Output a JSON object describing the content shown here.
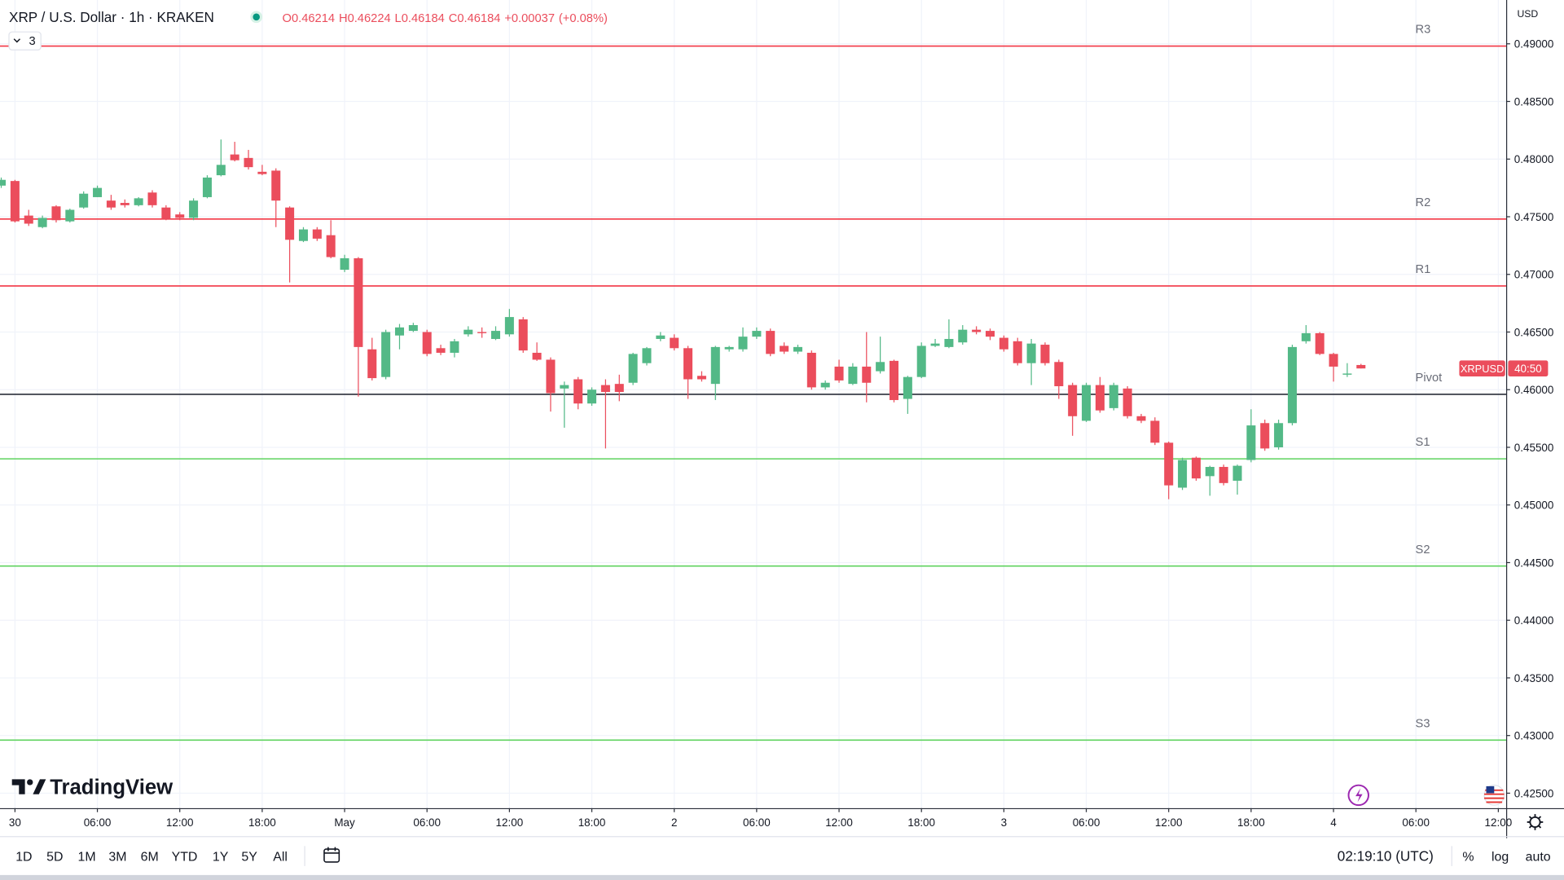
{
  "header": {
    "symbol": "XRP / U.S. Dollar · 1h · KRAKEN",
    "indicator_count": "3",
    "ohlc_labels": [
      "O",
      "H",
      "L",
      "C"
    ],
    "change": "+0.00037",
    "change_percent": "(+0.08%)"
  },
  "chart_data": {
    "type": "candlestick",
    "x": [
      -1,
      0,
      1,
      2,
      3,
      4,
      5,
      6,
      7,
      8,
      9,
      10,
      11,
      12,
      13,
      14,
      15,
      16,
      17,
      18,
      19,
      20,
      21,
      22,
      23,
      24,
      25,
      26,
      27,
      28,
      29,
      30,
      31,
      32,
      33,
      34,
      35,
      36,
      37,
      38,
      39,
      40,
      41,
      42,
      43,
      44,
      45,
      46,
      47,
      48,
      49,
      50,
      51,
      52,
      53,
      54,
      55,
      56,
      57,
      58,
      59,
      60,
      61,
      62,
      63,
      64,
      65,
      66,
      67,
      68,
      69,
      70,
      71,
      72,
      73,
      74,
      75,
      76,
      77,
      78,
      79,
      80,
      81,
      82,
      83,
      84,
      85,
      86,
      87,
      88,
      89,
      90,
      91,
      92,
      93,
      94,
      95,
      96,
      97,
      98
    ],
    "open": [
      0.4777,
      0.4781,
      0.4751,
      0.4741,
      0.4759,
      0.4746,
      0.4758,
      0.4767,
      0.4764,
      0.4762,
      0.476,
      0.4771,
      0.4758,
      0.4752,
      0.4749,
      0.4767,
      0.4786,
      0.4804,
      0.4801,
      0.4789,
      0.479,
      0.4758,
      0.4729,
      0.4739,
      0.4734,
      0.4704,
      0.4714,
      0.4635,
      0.4611,
      0.4647,
      0.4651,
      0.465,
      0.4636,
      0.4632,
      0.4648,
      0.465,
      0.4644,
      0.4648,
      0.4661,
      0.4632,
      0.4626,
      0.4601,
      0.4609,
      0.4588,
      0.4604,
      0.4605,
      0.4606,
      0.4623,
      0.4644,
      0.4645,
      0.4636,
      0.4612,
      0.4605,
      0.4635,
      0.4635,
      0.4646,
      0.4651,
      0.4638,
      0.4633,
      0.4632,
      0.4602,
      0.462,
      0.4605,
      0.462,
      0.4616,
      0.4625,
      0.4592,
      0.4611,
      0.4638,
      0.4637,
      0.4641,
      0.4652,
      0.4651,
      0.4645,
      0.4642,
      0.4623,
      0.4639,
      0.4624,
      0.4604,
      0.4573,
      0.4604,
      0.4584,
      0.4601,
      0.4577,
      0.4573,
      0.4554,
      0.4515,
      0.4541,
      0.4525,
      0.4533,
      0.4521,
      0.4539,
      0.4571,
      0.455,
      0.4571,
      0.4642,
      0.4649,
      0.4631,
      0.4613,
      0.46214
    ],
    "high": [
      0.4784,
      0.4782,
      0.4756,
      0.4751,
      0.476,
      0.4757,
      0.4772,
      0.4777,
      0.4769,
      0.4765,
      0.4767,
      0.4773,
      0.476,
      0.4754,
      0.4766,
      0.4786,
      0.4817,
      0.4815,
      0.4808,
      0.4795,
      0.4792,
      0.4759,
      0.4741,
      0.4741,
      0.4747,
      0.4717,
      0.4715,
      0.4645,
      0.4652,
      0.4657,
      0.4658,
      0.4652,
      0.4639,
      0.4644,
      0.4655,
      0.4654,
      0.4655,
      0.467,
      0.4663,
      0.4641,
      0.4628,
      0.4607,
      0.4611,
      0.4602,
      0.4609,
      0.4613,
      0.4632,
      0.4637,
      0.465,
      0.4648,
      0.4638,
      0.4616,
      0.4638,
      0.4638,
      0.4654,
      0.4654,
      0.4653,
      0.4641,
      0.4639,
      0.4634,
      0.4608,
      0.4626,
      0.4623,
      0.465,
      0.4646,
      0.4626,
      0.4612,
      0.4641,
      0.4644,
      0.4661,
      0.4656,
      0.4655,
      0.4653,
      0.4647,
      0.4645,
      0.4644,
      0.4641,
      0.4626,
      0.4606,
      0.4606,
      0.4611,
      0.4606,
      0.4603,
      0.4579,
      0.4576,
      0.4555,
      0.4541,
      0.4542,
      0.4534,
      0.4535,
      0.4535,
      0.4583,
      0.4574,
      0.4574,
      0.4639,
      0.4656,
      0.465,
      0.4632,
      0.4623,
      0.46224
    ],
    "low": [
      0.4775,
      0.4745,
      0.4742,
      0.474,
      0.4745,
      0.4745,
      0.4757,
      0.4767,
      0.4756,
      0.4758,
      0.4759,
      0.4758,
      0.4747,
      0.4747,
      0.4747,
      0.4766,
      0.4785,
      0.4798,
      0.4791,
      0.4786,
      0.4741,
      0.4693,
      0.4728,
      0.4729,
      0.4714,
      0.4702,
      0.4594,
      0.4608,
      0.4609,
      0.4635,
      0.465,
      0.4629,
      0.463,
      0.4628,
      0.4646,
      0.4645,
      0.4643,
      0.4646,
      0.4632,
      0.4625,
      0.4581,
      0.4567,
      0.4583,
      0.4586,
      0.4549,
      0.459,
      0.4604,
      0.4621,
      0.4642,
      0.4634,
      0.4592,
      0.4607,
      0.4591,
      0.4633,
      0.4633,
      0.4644,
      0.4629,
      0.4631,
      0.4631,
      0.46,
      0.46,
      0.4606,
      0.4604,
      0.4589,
      0.4614,
      0.4589,
      0.4579,
      0.461,
      0.4637,
      0.4636,
      0.4639,
      0.4648,
      0.4643,
      0.4633,
      0.4621,
      0.4604,
      0.4621,
      0.4592,
      0.456,
      0.4572,
      0.458,
      0.4582,
      0.4575,
      0.4571,
      0.4552,
      0.4505,
      0.4513,
      0.4521,
      0.4508,
      0.4517,
      0.4509,
      0.4537,
      0.4547,
      0.4548,
      0.4569,
      0.464,
      0.463,
      0.4607,
      0.4611,
      0.46184
    ],
    "close": [
      0.4782,
      0.4746,
      0.4744,
      0.4749,
      0.4747,
      0.4756,
      0.477,
      0.4775,
      0.4758,
      0.476,
      0.4766,
      0.476,
      0.4748,
      0.4749,
      0.4764,
      0.4784,
      0.4795,
      0.4799,
      0.4793,
      0.4787,
      0.4764,
      0.473,
      0.4739,
      0.4731,
      0.4715,
      0.4714,
      0.4637,
      0.461,
      0.465,
      0.4654,
      0.4656,
      0.4631,
      0.4632,
      0.4642,
      0.4652,
      0.4649,
      0.4651,
      0.4663,
      0.4634,
      0.4626,
      0.4597,
      0.4604,
      0.4588,
      0.46,
      0.4598,
      0.4598,
      0.4631,
      0.4636,
      0.4647,
      0.4636,
      0.4609,
      0.4609,
      0.4637,
      0.4637,
      0.4646,
      0.4651,
      0.4631,
      0.4633,
      0.4637,
      0.4602,
      0.4606,
      0.4608,
      0.462,
      0.4606,
      0.4624,
      0.4591,
      0.4611,
      0.4638,
      0.464,
      0.4644,
      0.4652,
      0.465,
      0.4646,
      0.4635,
      0.4623,
      0.464,
      0.4623,
      0.4603,
      0.4577,
      0.4604,
      0.4582,
      0.4604,
      0.4577,
      0.4573,
      0.4554,
      0.4517,
      0.4539,
      0.4523,
      0.4533,
      0.4519,
      0.4534,
      0.4569,
      0.4549,
      0.4571,
      0.4637,
      0.4649,
      0.4631,
      0.462,
      0.4614,
      0.46184
    ],
    "up_color": "#53b987",
    "down_color": "#eb4d5c",
    "xlim": [
      -1.09,
      108.57
    ],
    "xticks": [
      {
        "value": 0,
        "label": "30"
      },
      {
        "value": 6,
        "label": "06:00"
      },
      {
        "value": 12,
        "label": "12:00"
      },
      {
        "value": 18,
        "label": "18:00"
      },
      {
        "value": 24,
        "label": "May"
      },
      {
        "value": 30,
        "label": "06:00"
      },
      {
        "value": 36,
        "label": "12:00"
      },
      {
        "value": 42,
        "label": "18:00"
      },
      {
        "value": 48,
        "label": "2"
      },
      {
        "value": 54,
        "label": "06:00"
      },
      {
        "value": 60,
        "label": "12:00"
      },
      {
        "value": 66,
        "label": "18:00"
      },
      {
        "value": 72,
        "label": "3"
      },
      {
        "value": 78,
        "label": "06:00"
      },
      {
        "value": 84,
        "label": "12:00"
      },
      {
        "value": 90,
        "label": "18:00"
      },
      {
        "value": 96,
        "label": "4"
      },
      {
        "value": 102,
        "label": "06:00"
      },
      {
        "value": 108,
        "label": "12:00"
      }
    ],
    "ylim": [
      0.4237,
      0.4938
    ],
    "yticks": [
      {
        "value": 0.425,
        "label": "0.42500"
      },
      {
        "value": 0.43,
        "label": "0.43000"
      },
      {
        "value": 0.435,
        "label": "0.43500"
      },
      {
        "value": 0.44,
        "label": "0.44000"
      },
      {
        "value": 0.445,
        "label": "0.44500"
      },
      {
        "value": 0.45,
        "label": "0.45000"
      },
      {
        "value": 0.455,
        "label": "0.45500"
      },
      {
        "value": 0.46,
        "label": "0.46000"
      },
      {
        "value": 0.465,
        "label": "0.46500"
      },
      {
        "value": 0.47,
        "label": "0.47000"
      },
      {
        "value": 0.475,
        "label": "0.47500"
      },
      {
        "value": 0.48,
        "label": "0.48000"
      },
      {
        "value": 0.485,
        "label": "0.48500"
      },
      {
        "value": 0.49,
        "label": "0.49000"
      }
    ],
    "grid": true,
    "axis_unit": "USD",
    "levels": [
      {
        "name": "R3",
        "value": 0.4898,
        "color": "#f23645"
      },
      {
        "name": "R2",
        "value": 0.4748,
        "color": "#f23645"
      },
      {
        "name": "R1",
        "value": 0.469,
        "color": "#f23645"
      },
      {
        "name": "Pivot",
        "value": 0.4596,
        "color": "#2a2e39"
      },
      {
        "name": "S1",
        "value": 0.454,
        "color": "#5fd35f"
      },
      {
        "name": "S2",
        "value": 0.4447,
        "color": "#5fd35f"
      },
      {
        "name": "S3",
        "value": 0.4296,
        "color": "#5fd35f"
      }
    ],
    "price_tag": {
      "symbol": "XRPUSD",
      "countdown": "40:50"
    }
  },
  "footer": {
    "brand": "TradingView",
    "ranges": [
      "1D",
      "5D",
      "1M",
      "3M",
      "6M",
      "YTD",
      "1Y",
      "5Y",
      "All"
    ],
    "time": "02:19:10 (UTC)",
    "scale_options": [
      "%",
      "log",
      "auto"
    ]
  }
}
